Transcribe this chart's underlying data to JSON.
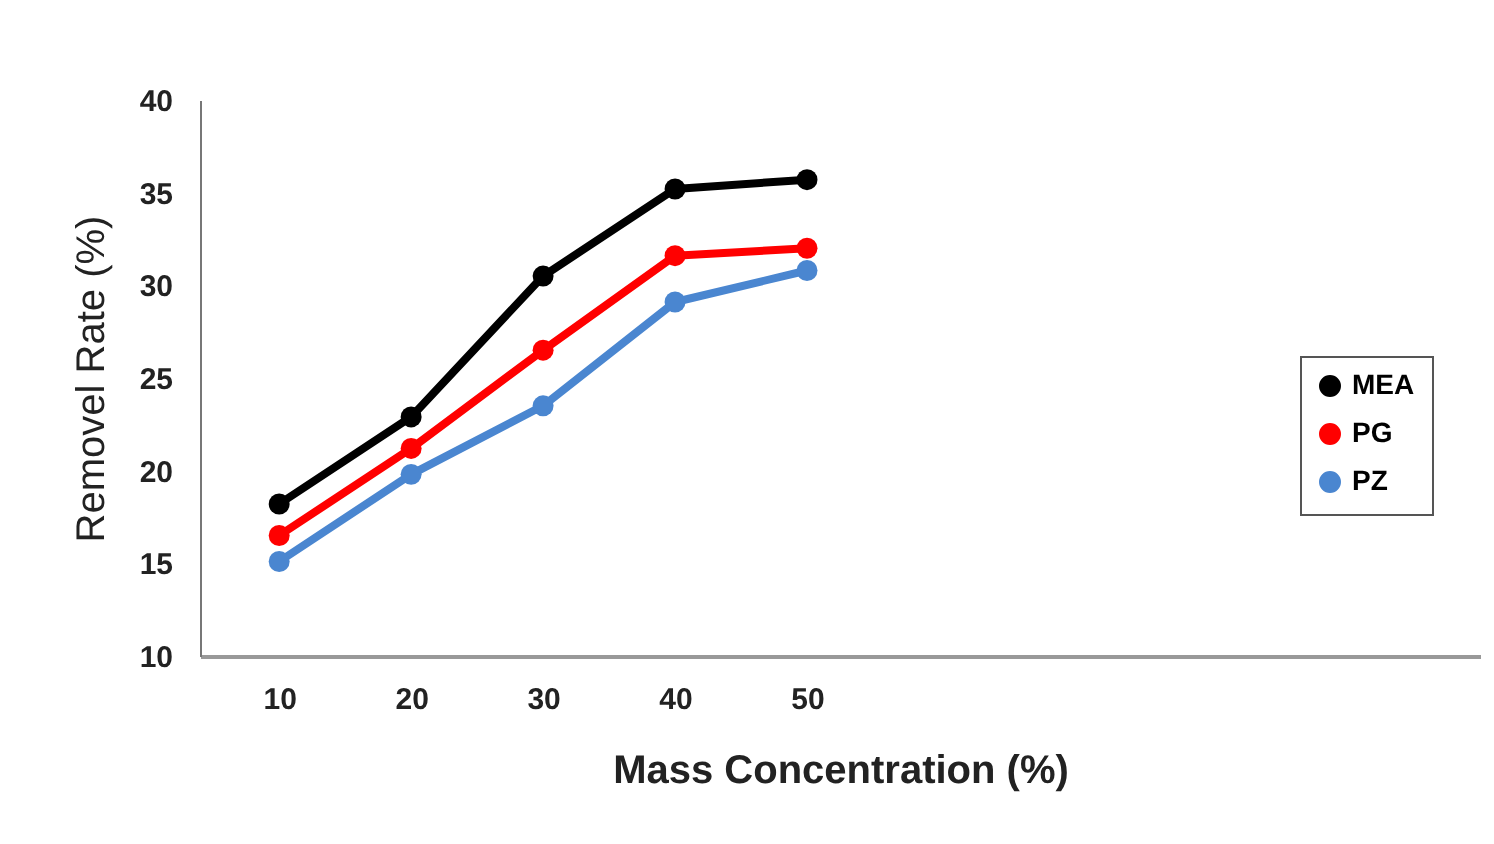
{
  "chart_data": {
    "type": "line",
    "xlabel": "Mass Concentration (%)",
    "ylabel": "Removel Rate (%)",
    "x": [
      10,
      20,
      30,
      40,
      50
    ],
    "xlim": [
      4,
      101
    ],
    "xticks": [
      10,
      20,
      30,
      40,
      50
    ],
    "ylim": [
      10,
      40
    ],
    "yticks": [
      10,
      15,
      20,
      25,
      30,
      35,
      40
    ],
    "series": [
      {
        "name": "MEA",
        "color": "#000000",
        "values": [
          18.2,
          22.9,
          30.5,
          35.2,
          35.7
        ]
      },
      {
        "name": "PG",
        "color": "#ff0000",
        "values": [
          16.5,
          21.2,
          26.5,
          31.6,
          32.0
        ]
      },
      {
        "name": "PZ",
        "color": "#4a86d0",
        "values": [
          15.1,
          19.8,
          23.5,
          29.1,
          30.8
        ]
      }
    ],
    "grid": false,
    "legend": "right",
    "marker": "circle",
    "line_style": "solid"
  }
}
